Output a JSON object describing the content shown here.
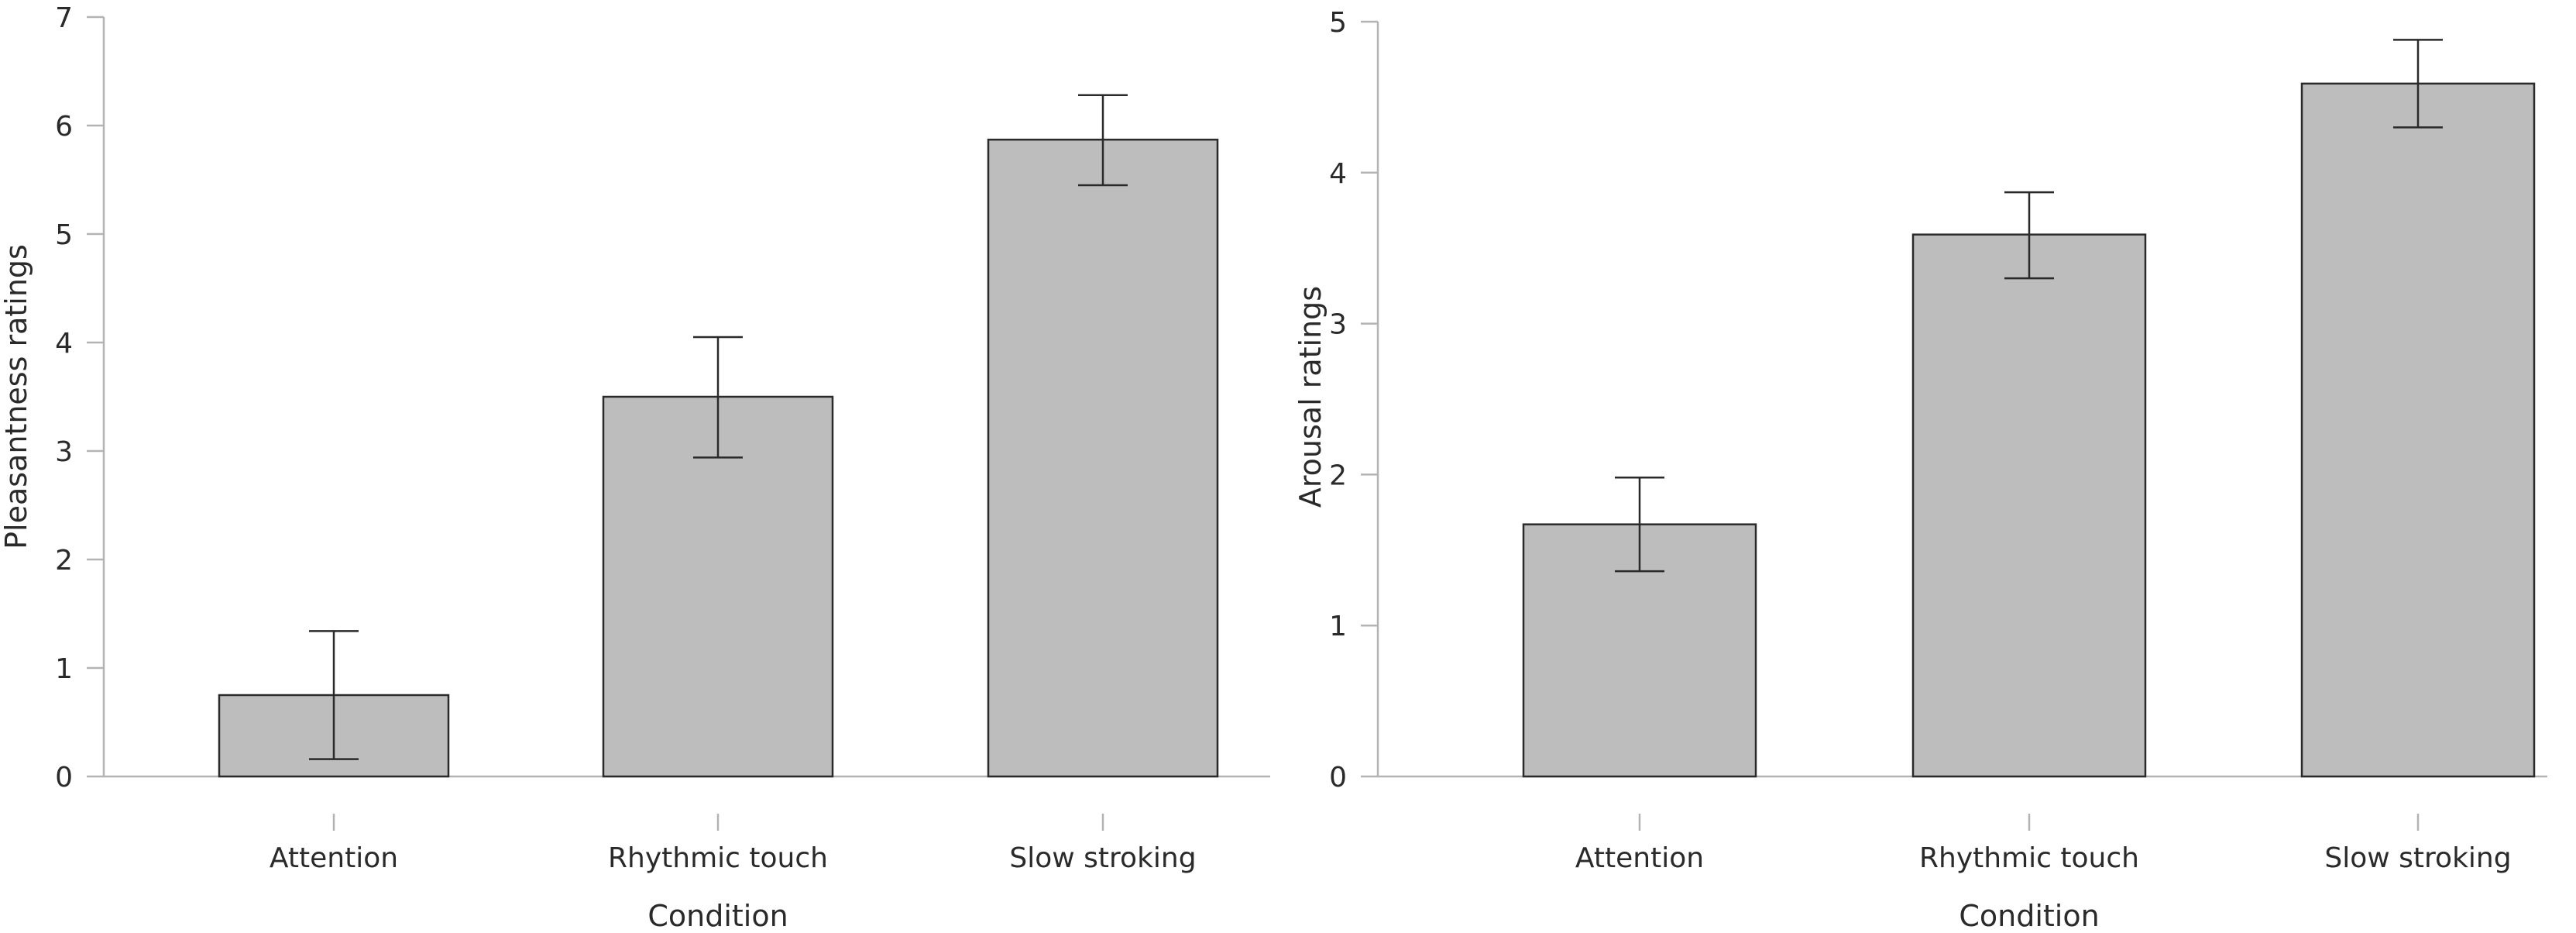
{
  "colors": {
    "bar_fill": "#bdbdbd",
    "bar_stroke": "#2a2a2a",
    "axis": "#b3b3b3",
    "error_bar": "#2a2a2a",
    "text": "#2a2a2a"
  },
  "chart_data": [
    {
      "type": "bar",
      "title": "",
      "xlabel": "Condition",
      "ylabel": "Pleasantness ratings",
      "categories": [
        "Attention",
        "Rhythmic touch",
        "Slow stroking"
      ],
      "values": [
        0.75,
        3.5,
        5.87
      ],
      "error_low": [
        0.16,
        2.94,
        5.45
      ],
      "error_high": [
        1.34,
        4.05,
        6.28
      ],
      "ylim": [
        0,
        7
      ],
      "yticks": [
        0,
        1,
        2,
        3,
        4,
        5,
        6,
        7
      ],
      "grid": false
    },
    {
      "type": "bar",
      "title": "",
      "xlabel": "Condition",
      "ylabel": "Arousal ratings",
      "categories": [
        "Attention",
        "Rhythmic touch",
        "Slow stroking"
      ],
      "values": [
        1.67,
        3.59,
        4.59
      ],
      "error_low": [
        1.36,
        3.3,
        4.3
      ],
      "error_high": [
        1.98,
        3.87,
        4.88
      ],
      "ylim": [
        0,
        5
      ],
      "yticks": [
        0,
        1,
        2,
        3,
        4,
        5
      ],
      "grid": false
    }
  ]
}
